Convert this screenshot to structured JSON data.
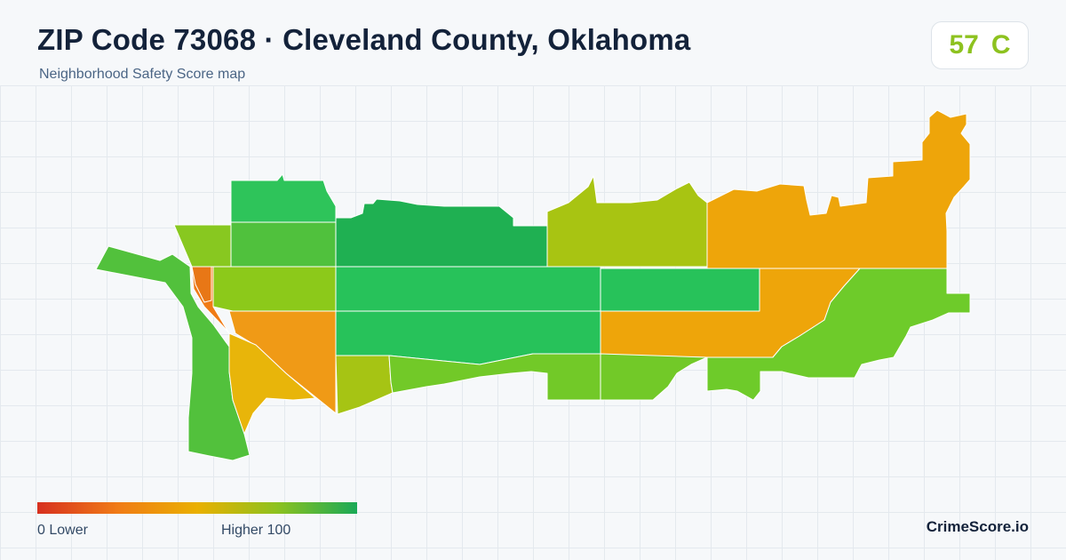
{
  "header": {
    "title": "ZIP Code 73068 · Cleveland County, Oklahoma",
    "subtitle": "Neighborhood Safety Score map"
  },
  "score": {
    "value": "57",
    "grade": "C",
    "color": "#8dc21f"
  },
  "legend": {
    "low_text": "0  Lower",
    "high_text": "Higher  100",
    "gradient_colors": [
      "#d7301f",
      "#f07b16",
      "#eab000",
      "#8dc21f",
      "#1aa957"
    ]
  },
  "brand": "CrimeScore.io"
}
